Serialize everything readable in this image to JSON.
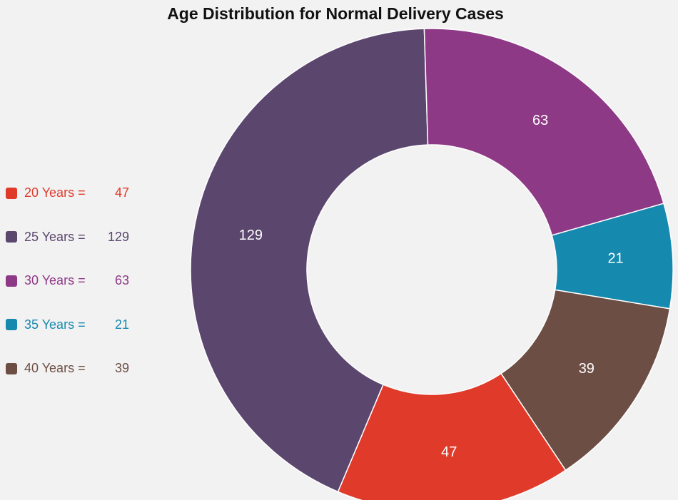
{
  "chart_data": {
    "type": "pie",
    "title": "Age Distribution for Normal Delivery Cases",
    "categories": [
      "20 Years",
      "25 Years",
      "30 Years",
      "35 Years",
      "40 Years"
    ],
    "values": [
      47,
      129,
      63,
      21,
      39
    ],
    "colors": [
      "#e03a2a",
      "#5b466e",
      "#8e3986",
      "#1689ae",
      "#6d4e44"
    ],
    "legend": [
      {
        "label": "20 Years =",
        "value": "47"
      },
      {
        "label": "25 Years =",
        "value": "129"
      },
      {
        "label": "30 Years =",
        "value": "63"
      },
      {
        "label": "35 Years =",
        "value": "21"
      },
      {
        "label": "40 Years =",
        "value": "39"
      }
    ],
    "legend_position": "left",
    "donut": true
  }
}
